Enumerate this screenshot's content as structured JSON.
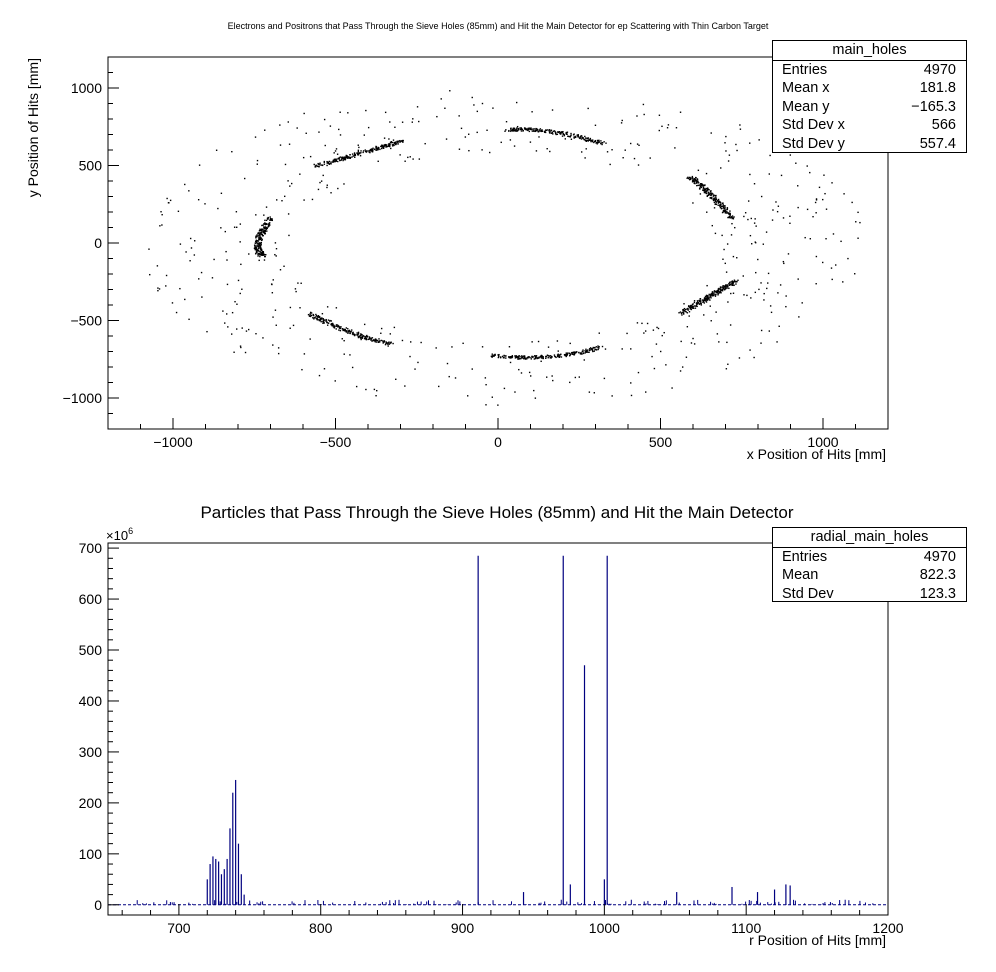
{
  "chart_data": [
    {
      "type": "scatter",
      "title": "Electrons and Positrons that Pass Through the Sieve Holes (85mm) and Hit the Main Detector for ep Scattering with Thin Carbon Target",
      "xlabel": "x Position of Hits [mm]",
      "ylabel": "y Position of Hits [mm]",
      "xlim": [
        -1200,
        1200
      ],
      "ylim": [
        -1200,
        1200
      ],
      "x_ticks": [
        "−1000",
        "−500",
        "0",
        "500",
        "1000"
      ],
      "y_ticks": [
        "−1000",
        "−500",
        "0",
        "500",
        "1000"
      ],
      "grid": false,
      "legend": "none",
      "clusters": [
        {
          "x": [
            -560,
            -430,
            -300
          ],
          "y": [
            500,
            580,
            660
          ]
        },
        {
          "x": [
            30,
            170,
            330
          ],
          "y": [
            735,
            720,
            640
          ]
        },
        {
          "x": [
            590,
            650,
            720
          ],
          "y": [
            430,
            320,
            160
          ]
        },
        {
          "x": [
            -725,
            -740,
            -700
          ],
          "y": [
            -80,
            10,
            170
          ]
        },
        {
          "x": [
            560,
            650,
            730
          ],
          "y": [
            -450,
            -340,
            -240
          ]
        },
        {
          "x": [
            -580,
            -470,
            -330
          ],
          "y": [
            -450,
            -560,
            -650
          ]
        },
        {
          "x": [
            -20,
            150,
            310
          ],
          "y": [
            -720,
            -730,
            -670
          ]
        }
      ],
      "stats": {
        "name": "main_holes",
        "rows": [
          {
            "label": "Entries",
            "value": "4970"
          },
          {
            "label": "Mean x",
            "value": "181.8"
          },
          {
            "label": "Mean y",
            "value": "−165.3"
          },
          {
            "label": "Std Dev x",
            "value": "566"
          },
          {
            "label": "Std Dev y",
            "value": "557.4"
          }
        ]
      }
    },
    {
      "type": "bar",
      "title": "Particles that Pass Through the Sieve Holes (85mm) and Hit the Main Detector",
      "xlabel": "r Position of Hits [mm]",
      "ylabel": "",
      "xlim": [
        650,
        1200
      ],
      "ylim": [
        -20,
        710
      ],
      "y_multiplier": "×10",
      "y_multiplier_exp": "6",
      "x_ticks": [
        "700",
        "800",
        "900",
        "1000",
        "1100",
        "1200"
      ],
      "y_ticks": [
        "0",
        "100",
        "200",
        "300",
        "400",
        "500",
        "600",
        "700"
      ],
      "grid": false,
      "legend": "none",
      "series_color": "#000080",
      "bins": {
        "x": [
          720,
          722,
          724,
          726,
          728,
          730,
          732,
          734,
          736,
          738,
          740,
          742,
          744,
          746,
          911,
          943,
          971,
          976,
          986,
          1000,
          1002,
          1051,
          1090,
          1108,
          1120,
          1128,
          1131
        ],
        "y": [
          50,
          80,
          95,
          90,
          85,
          60,
          70,
          90,
          150,
          220,
          245,
          120,
          60,
          20,
          685,
          25,
          685,
          40,
          470,
          50,
          685,
          25,
          35,
          25,
          30,
          40,
          38
        ]
      },
      "stats": {
        "name": "radial_main_holes",
        "rows": [
          {
            "label": "Entries",
            "value": "4970"
          },
          {
            "label": "Mean",
            "value": "822.3"
          },
          {
            "label": "Std Dev",
            "value": "123.3"
          }
        ]
      }
    }
  ]
}
